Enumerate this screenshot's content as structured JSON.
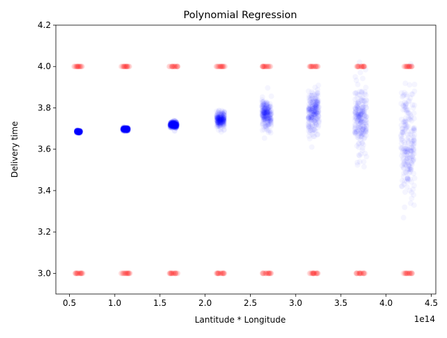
{
  "chart_data": {
    "type": "scatter",
    "title": "Polynomial Regression",
    "xlabel": "Lantitude * Longitude",
    "ylabel": "Delivery time",
    "x_offset_label": "1e14",
    "xlim": [
      0.35,
      4.55
    ],
    "ylim": [
      2.9,
      4.2
    ],
    "x_ticks": [
      "0.5",
      "1.0",
      "1.5",
      "2.0",
      "2.5",
      "3.0",
      "3.5",
      "4.0",
      "4.5"
    ],
    "x_tick_values": [
      0.5,
      1.0,
      1.5,
      2.0,
      2.5,
      3.0,
      3.5,
      4.0,
      4.5
    ],
    "y_ticks": [
      "3.0",
      "3.2",
      "3.4",
      "3.6",
      "3.8",
      "4.0",
      "4.2"
    ],
    "y_tick_values": [
      3.0,
      3.2,
      3.4,
      3.6,
      3.8,
      4.0,
      4.2
    ],
    "grid": false,
    "legend": "none",
    "series": [
      {
        "color": "#ff0000",
        "opacity": 0.04,
        "clusters": [
          {
            "x": 0.6,
            "y_values": [
              3.0,
              4.0
            ]
          },
          {
            "x": 1.12,
            "y_values": [
              3.0,
              4.0
            ]
          },
          {
            "x": 1.65,
            "y_values": [
              3.0,
              4.0
            ]
          },
          {
            "x": 2.17,
            "y_values": [
              3.0,
              4.0
            ]
          },
          {
            "x": 2.68,
            "y_values": [
              3.0,
              4.0
            ]
          },
          {
            "x": 3.2,
            "y_values": [
              3.0,
              4.0
            ]
          },
          {
            "x": 3.72,
            "y_values": [
              3.0,
              4.0
            ]
          },
          {
            "x": 4.24,
            "y_values": [
              3.0,
              4.0
            ]
          }
        ]
      },
      {
        "color": "#0000ff",
        "opacity": 0.04,
        "clusters": [
          {
            "x": 0.6,
            "y_center": 3.685,
            "y_spread": 0.004
          },
          {
            "x": 1.12,
            "y_center": 3.697,
            "y_spread": 0.006
          },
          {
            "x": 1.65,
            "y_center": 3.718,
            "y_spread": 0.012
          },
          {
            "x": 2.17,
            "y_center": 3.745,
            "y_spread": 0.03
          },
          {
            "x": 2.68,
            "y_center": 3.77,
            "y_spread": 0.06
          },
          {
            "x": 3.2,
            "y_center": 3.78,
            "y_spread": 0.09
          },
          {
            "x": 3.72,
            "y_center": 3.74,
            "y_spread": 0.14
          },
          {
            "x": 4.24,
            "y_center": 3.62,
            "y_spread": 0.22
          }
        ]
      }
    ]
  }
}
